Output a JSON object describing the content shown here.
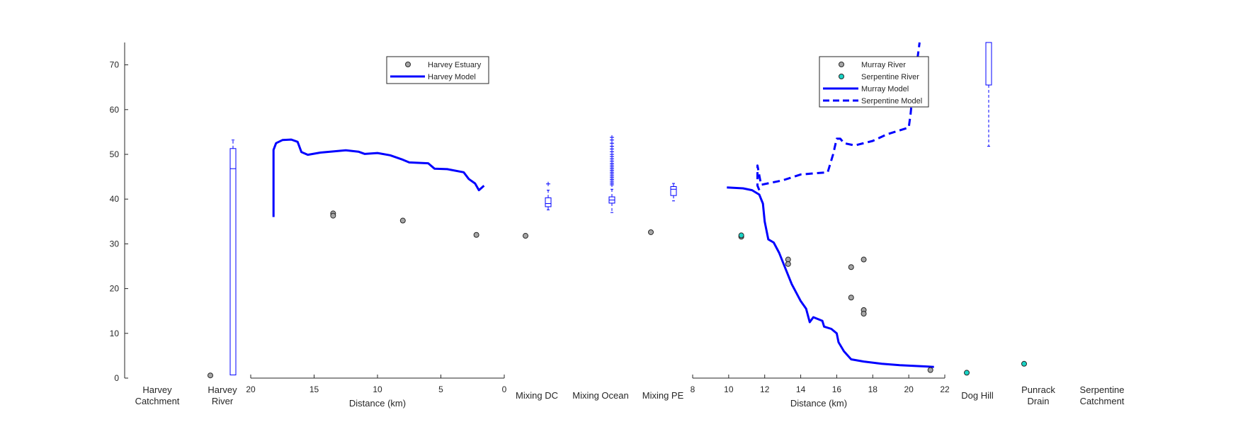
{
  "chart_data": {
    "type": "line",
    "colors": {
      "model": "#0000ff",
      "grey_marker": "#a6a6a6",
      "cyan_marker": "#19d3c5",
      "axis": "#262626"
    },
    "y_axis": {
      "ylim": [
        0,
        75
      ],
      "ticks": [
        "0",
        "10",
        "20",
        "30",
        "40",
        "50",
        "60",
        "70"
      ]
    },
    "left_panel": {
      "xlabel": "Distance (km)",
      "xlim": [
        20,
        0
      ],
      "x_ticks": [
        "20",
        "15",
        "10",
        "5",
        "0"
      ],
      "legend": [
        "Harvey Estuary",
        "Harvey Model"
      ],
      "legend_location": "top-right",
      "harvey_estuary_points": [
        [
          13.5,
          36.8
        ],
        [
          13.5,
          36.3
        ],
        [
          8,
          35.2
        ],
        [
          2.2,
          32
        ]
      ],
      "harvey_model": [
        [
          18.2,
          36
        ],
        [
          18.2,
          51
        ],
        [
          18,
          52.5
        ],
        [
          17.5,
          53.2
        ],
        [
          16.8,
          53.3
        ],
        [
          16.3,
          52.8
        ],
        [
          16,
          50.5
        ],
        [
          15.5,
          49.9
        ],
        [
          14.5,
          50.4
        ],
        [
          12.5,
          50.9
        ],
        [
          11.5,
          50.6
        ],
        [
          11,
          50.1
        ],
        [
          10,
          50.3
        ],
        [
          9,
          49.8
        ],
        [
          8,
          48.8
        ],
        [
          7.5,
          48.2
        ],
        [
          6,
          48
        ],
        [
          5.5,
          46.8
        ],
        [
          4.5,
          46.7
        ],
        [
          3.2,
          46
        ],
        [
          2.8,
          44.5
        ],
        [
          2.3,
          43.5
        ],
        [
          2,
          42
        ],
        [
          1.6,
          43
        ]
      ]
    },
    "right_panel": {
      "xlabel": "Distance (km)",
      "xlim": [
        8,
        22
      ],
      "x_ticks": [
        "8",
        "10",
        "12",
        "14",
        "16",
        "18",
        "20",
        "22"
      ],
      "legend": [
        "Murray River",
        "Serpentine River",
        "Murray Model",
        "Serpentine Model"
      ],
      "legend_location": "top-right",
      "murray_river_points": [
        [
          10.7,
          31.6
        ],
        [
          13.3,
          26.5
        ],
        [
          13.3,
          25.5
        ],
        [
          16.8,
          24.8
        ],
        [
          16.8,
          18
        ],
        [
          17.5,
          26.5
        ],
        [
          17.5,
          15.2
        ],
        [
          17.5,
          14.4
        ],
        [
          21.2,
          1.8
        ]
      ],
      "serpentine_river_points": [
        [
          10.7,
          31.9
        ]
      ],
      "murray_model": [
        [
          9.9,
          42.6
        ],
        [
          10.8,
          42.4
        ],
        [
          11.3,
          42
        ],
        [
          11.7,
          41
        ],
        [
          11.9,
          39
        ],
        [
          12,
          35
        ],
        [
          12.2,
          31
        ],
        [
          12.5,
          30.3
        ],
        [
          12.8,
          28
        ],
        [
          13.1,
          25
        ],
        [
          13.5,
          21
        ],
        [
          14,
          17.2
        ],
        [
          14.3,
          15.5
        ],
        [
          14.5,
          12.5
        ],
        [
          14.7,
          13.6
        ],
        [
          15.2,
          12.8
        ],
        [
          15.3,
          11.5
        ],
        [
          15.7,
          11
        ],
        [
          16,
          10
        ],
        [
          16.1,
          8
        ],
        [
          16.4,
          6
        ],
        [
          16.8,
          4.2
        ],
        [
          17.5,
          3.7
        ],
        [
          18.5,
          3.2
        ],
        [
          19.5,
          2.9
        ],
        [
          21,
          2.6
        ],
        [
          21.4,
          2.5
        ]
      ],
      "serpentine_model": [
        [
          11.7,
          42
        ],
        [
          11.6,
          43
        ],
        [
          11.6,
          47.5
        ],
        [
          11.8,
          43.2
        ],
        [
          13,
          44.2
        ],
        [
          14,
          45.5
        ],
        [
          15.5,
          46
        ],
        [
          15.8,
          50
        ],
        [
          16,
          53.5
        ],
        [
          16.2,
          53.5
        ],
        [
          16.4,
          52.5
        ],
        [
          17,
          52
        ],
        [
          18,
          53
        ],
        [
          18.8,
          54.5
        ],
        [
          20,
          56
        ],
        [
          20.1,
          59
        ],
        [
          20.2,
          63
        ],
        [
          20.3,
          66
        ],
        [
          20.5,
          72
        ],
        [
          20.6,
          75
        ]
      ]
    },
    "categories": {
      "harvey_catchment": "Harvey\nCatchment",
      "harvey_river": "Harvey\nRiver",
      "mixing_dc": "Mixing DC",
      "mixing_ocean": "Mixing Ocean",
      "mixing_pe": "Mixing PE",
      "dog_hill": "Dog Hill",
      "punrack_drain": "Punrack\nDrain",
      "serpentine_catchment": "Serpentine\nCatchment"
    },
    "harvey_river_point": 0.6,
    "harvey_river_box": {
      "q1": 0.7,
      "median": 46.8,
      "q3": 51.3,
      "whisker_high": 53.2
    },
    "mixing_dc_box": {
      "q1": 38.3,
      "median": 39.0,
      "q3": 40.3,
      "whisker_low": 37.6,
      "whisker_high": 42.0,
      "outliers": [
        43.4
      ]
    },
    "mixing_ocean_box": {
      "q1": 39.1,
      "median": 39.8,
      "q3": 40.5,
      "whisker_low": 37.0,
      "whisker_high": 42.2,
      "outliers": [
        43.2,
        43.6,
        44,
        44.4,
        44.8,
        45.2,
        45.6,
        46,
        46.4,
        46.8,
        47.2,
        47.6,
        48,
        48.5,
        49,
        49.5,
        50,
        50.6,
        51.2,
        51.8,
        52.5,
        53.2,
        53.8
      ]
    },
    "mixing_dc_point": 31.8,
    "mixing_pe_point": 32.6,
    "mixing_pe_box": {
      "q1": 40.8,
      "median": 42.2,
      "q3": 42.8,
      "whisker_low": 39.6,
      "whisker_high": 43.5
    },
    "dog_hill_point": 1.2,
    "punrack_drain_point": 3.2,
    "punrack_box": {
      "q1": 65.5,
      "median": 75,
      "q3": 75,
      "whisker_low": 51.8
    }
  }
}
